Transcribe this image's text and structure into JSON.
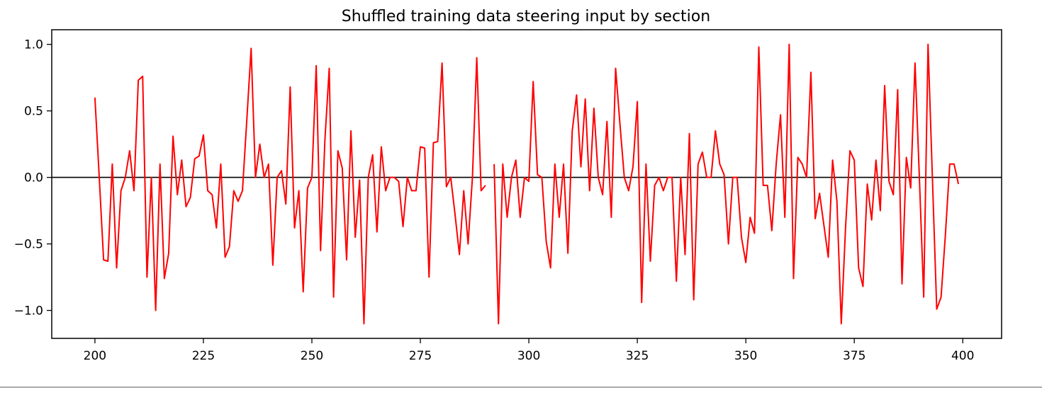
{
  "chart_data": {
    "type": "line",
    "title": "Shuffled training data steering input by section",
    "xlabel": "",
    "ylabel": "",
    "xlim": [
      190.05,
      408.95
    ],
    "ylim": [
      -1.21,
      1.11
    ],
    "xticks": [
      200,
      225,
      250,
      275,
      300,
      325,
      350,
      375,
      400
    ],
    "xtick_labels": [
      "200",
      "225",
      "250",
      "275",
      "300",
      "325",
      "350",
      "375",
      "400"
    ],
    "yticks": [
      1.0,
      0.5,
      0.0,
      -0.5,
      -1.0
    ],
    "ytick_labels": [
      "1.0",
      "0.5",
      "0.0",
      "−0.5",
      "−1.0"
    ],
    "grid": false,
    "reference_line_y": 0.0,
    "series": [
      {
        "color": "#ff0000",
        "segments": [
          {
            "x": [
              200,
              201,
              202,
              203,
              204,
              205,
              206,
              207,
              208,
              209,
              210,
              211,
              212,
              213,
              214,
              215,
              216,
              217,
              218,
              219,
              220,
              221,
              222,
              223,
              224,
              225,
              226,
              227,
              228,
              229,
              230,
              231,
              232,
              233,
              234,
              235,
              236,
              237,
              238,
              239,
              240,
              241,
              242,
              243,
              244,
              245,
              246,
              247,
              248,
              249,
              250,
              251,
              252,
              253,
              254,
              255,
              256,
              257,
              258,
              259,
              260,
              261,
              262,
              263,
              264,
              265,
              266,
              267,
              268,
              269,
              270,
              271,
              272,
              273,
              274,
              275,
              276,
              277,
              278,
              279,
              280,
              281,
              282,
              283,
              284,
              285,
              286,
              287,
              288,
              289,
              290
            ],
            "y": [
              0.6,
              0.0,
              -0.62,
              -0.63,
              0.1,
              -0.68,
              -0.1,
              0.0,
              0.2,
              -0.1,
              0.73,
              0.76,
              -0.75,
              0.0,
              -1.0,
              0.1,
              -0.76,
              -0.57,
              0.31,
              -0.13,
              0.13,
              -0.22,
              -0.15,
              0.14,
              0.16,
              0.32,
              -0.1,
              -0.13,
              -0.38,
              0.1,
              -0.6,
              -0.52,
              -0.1,
              -0.18,
              -0.1,
              0.43,
              0.97,
              0.0,
              0.25,
              0.0,
              0.1,
              -0.66,
              0.0,
              0.05,
              -0.2,
              0.68,
              -0.38,
              -0.1,
              -0.86,
              -0.08,
              0.0,
              0.84,
              -0.55,
              0.28,
              0.82,
              -0.9,
              0.2,
              0.07,
              -0.62,
              0.35,
              -0.45,
              -0.02,
              -1.1,
              0.0,
              0.17,
              -0.41,
              0.23,
              -0.1,
              0.0,
              0.0,
              -0.03,
              -0.37,
              0.0,
              -0.1,
              -0.1,
              0.23,
              0.22,
              -0.75,
              0.26,
              0.27,
              0.86,
              -0.07,
              0.0,
              -0.28,
              -0.58,
              -0.1,
              -0.5,
              0.0,
              0.9,
              -0.1,
              -0.06
            ]
          },
          {
            "x": [
              292,
              293,
              294,
              295,
              296,
              297,
              298,
              299,
              300,
              301,
              302,
              303,
              304,
              305,
              306,
              307,
              308,
              309,
              310,
              311,
              312,
              313,
              314,
              315,
              316,
              317,
              318,
              319,
              320,
              321,
              322,
              323,
              324,
              325,
              326,
              327,
              328,
              329,
              330,
              331,
              332,
              333,
              334,
              335,
              336,
              337,
              338,
              339,
              340,
              341,
              342,
              343,
              344,
              345,
              346,
              347,
              348,
              349,
              350,
              351,
              352,
              353,
              354,
              355,
              356,
              357,
              358,
              359,
              360,
              361,
              362,
              363,
              364,
              365,
              366,
              367,
              368,
              369,
              370,
              371,
              372,
              373,
              374,
              375,
              376,
              377,
              378,
              379,
              380,
              381,
              382,
              383,
              384,
              385,
              386,
              387,
              388,
              389,
              390,
              391,
              392,
              393,
              394,
              395,
              396,
              397,
              398,
              399
            ],
            "y": [
              0.1,
              -1.1,
              0.1,
              -0.3,
              0.0,
              0.13,
              -0.3,
              0.0,
              -0.03,
              0.72,
              0.02,
              0.0,
              -0.48,
              -0.68,
              0.1,
              -0.3,
              0.1,
              -0.57,
              0.35,
              0.62,
              0.08,
              0.59,
              -0.1,
              0.52,
              0.0,
              -0.13,
              0.42,
              -0.3,
              0.82,
              0.4,
              0.0,
              -0.1,
              0.08,
              0.57,
              -0.94,
              0.1,
              -0.63,
              -0.06,
              0.0,
              -0.1,
              0.0,
              0.0,
              -0.78,
              0.0,
              -0.58,
              0.33,
              -0.92,
              0.1,
              0.19,
              0.0,
              0.0,
              0.35,
              0.1,
              0.02,
              -0.5,
              0.0,
              0.0,
              -0.45,
              -0.64,
              -0.3,
              -0.42,
              0.98,
              -0.06,
              -0.06,
              -0.4,
              0.1,
              0.47,
              -0.3,
              1.0,
              -0.76,
              0.15,
              0.1,
              0.0,
              0.79,
              -0.31,
              -0.12,
              -0.36,
              -0.6,
              0.13,
              -0.18,
              -1.1,
              -0.37,
              0.2,
              0.13,
              -0.68,
              -0.82,
              -0.05,
              -0.32,
              0.13,
              -0.25,
              0.69,
              -0.03,
              -0.13,
              0.66,
              -0.8,
              0.15,
              -0.08,
              0.86,
              0.0,
              -0.9,
              1.0,
              0.0,
              -0.99,
              -0.9,
              -0.43,
              0.1,
              0.1,
              -0.05
            ]
          }
        ]
      }
    ]
  }
}
